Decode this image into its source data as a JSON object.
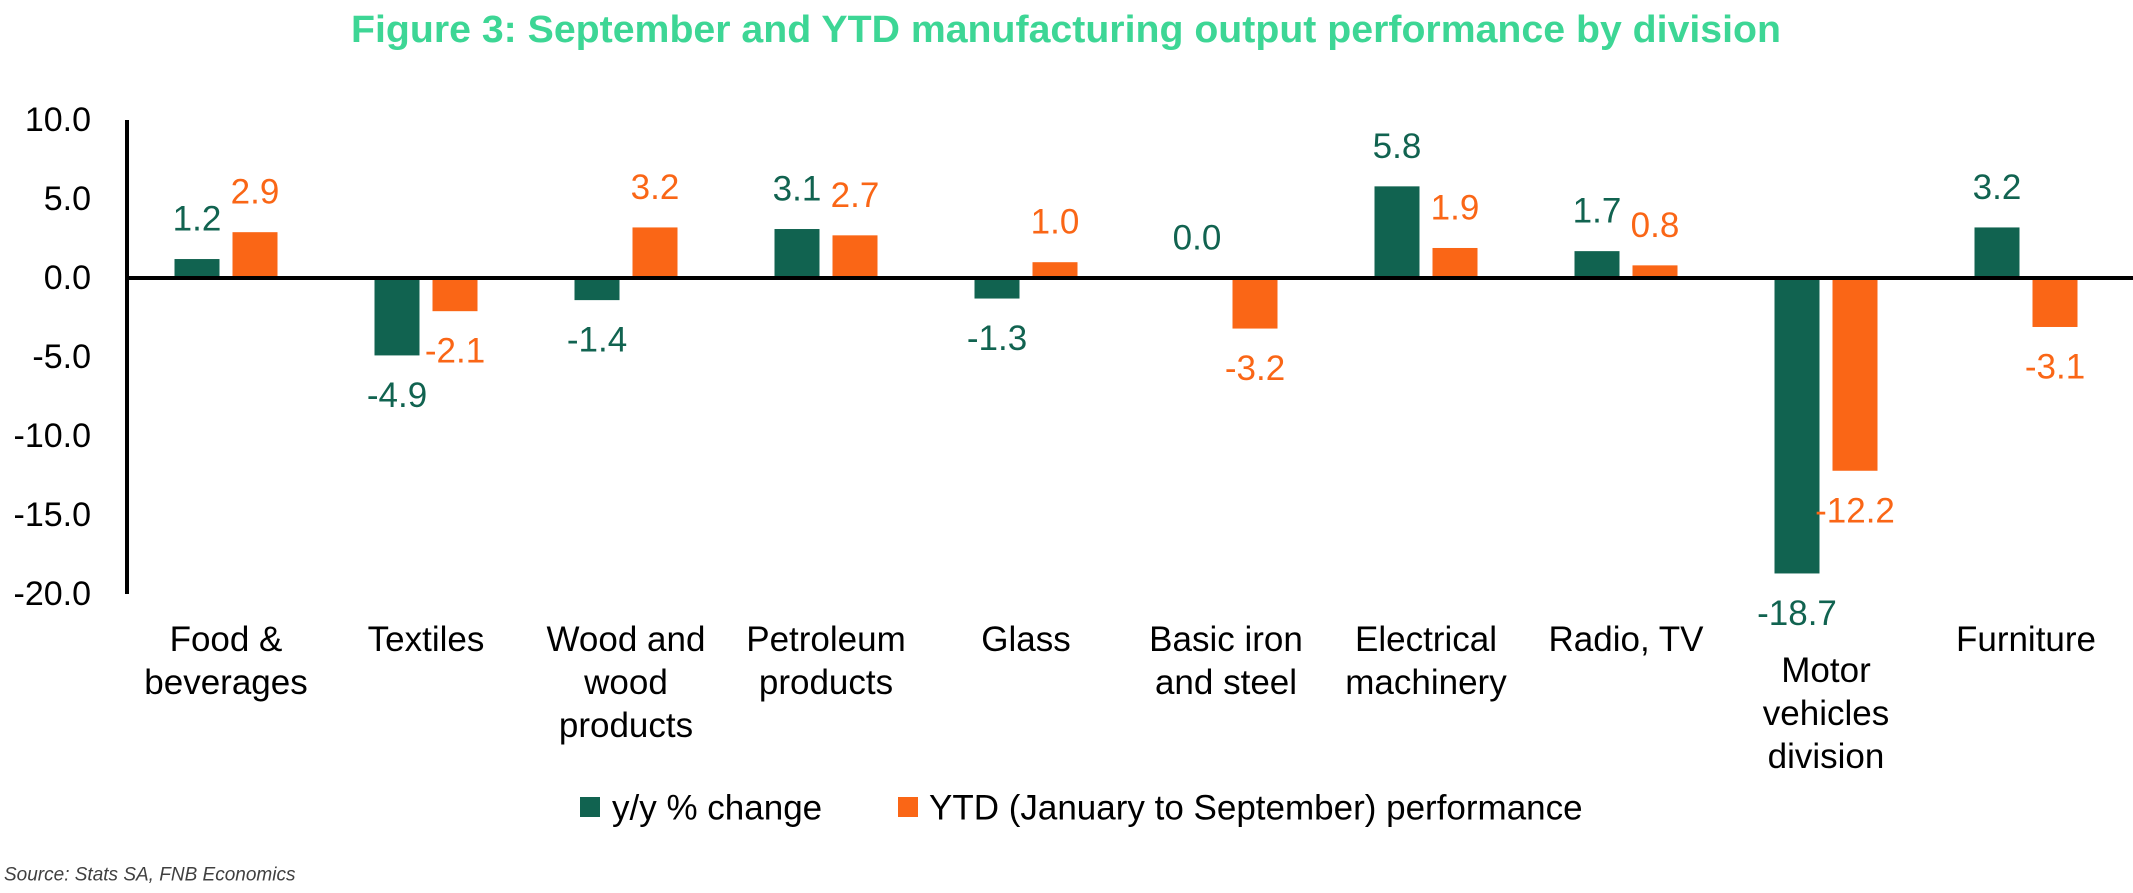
{
  "colors": {
    "title": "#3dd695",
    "axis": "#000000",
    "source_text": "#404040"
  },
  "chart_data": {
    "type": "bar",
    "title": "Figure 3: September and YTD manufacturing output performance by division",
    "xlabel": "",
    "ylabel": "",
    "categories": [
      "Food & beverages",
      "Textiles",
      "Wood and wood products",
      "Petroleum products",
      "Glass",
      "Basic iron and steel",
      "Electrical machinery",
      "Radio, TV",
      "Motor vehicles division",
      "Furniture"
    ],
    "series": [
      {
        "name": "y/y % change",
        "color": "#116350",
        "values": [
          1.2,
          -4.9,
          -1.4,
          3.1,
          -1.3,
          0.0,
          5.8,
          1.7,
          -18.7,
          3.2
        ]
      },
      {
        "name": "YTD (January to September) performance",
        "color": "#fa6616",
        "values": [
          2.9,
          -2.1,
          3.2,
          2.7,
          1.0,
          -3.2,
          1.9,
          0.8,
          -12.2,
          -3.1
        ]
      }
    ],
    "ylim": [
      -20,
      10
    ],
    "yticks": [
      10,
      5,
      0,
      -5,
      -10,
      -15,
      -20
    ],
    "data_labels": true,
    "grid": false,
    "legend": "bottom-center"
  },
  "source": "Source: Stats SA, FNB Economics"
}
